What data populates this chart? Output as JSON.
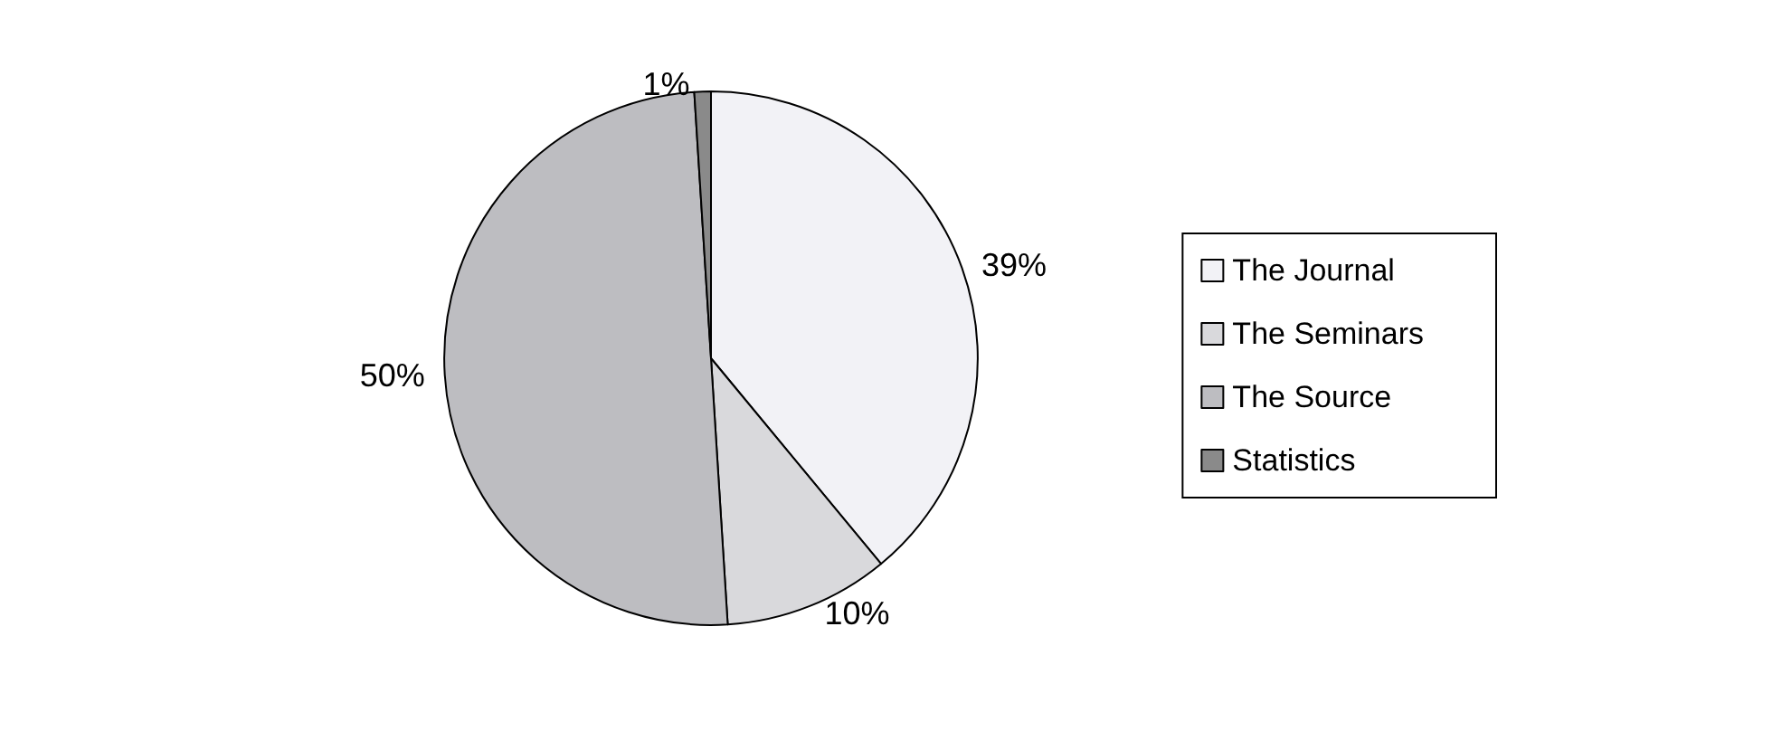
{
  "chart_data": {
    "type": "pie",
    "categories": [
      "The Journal",
      "The Seminars",
      "The Source",
      "Statistics"
    ],
    "values": [
      39,
      10,
      50,
      1
    ],
    "value_labels": [
      "39%",
      "10%",
      "50%",
      "1%"
    ],
    "colors": [
      "#f2f2f6",
      "#d9d9dc",
      "#bdbdc1",
      "#8a8a8a"
    ],
    "legend": "right"
  }
}
